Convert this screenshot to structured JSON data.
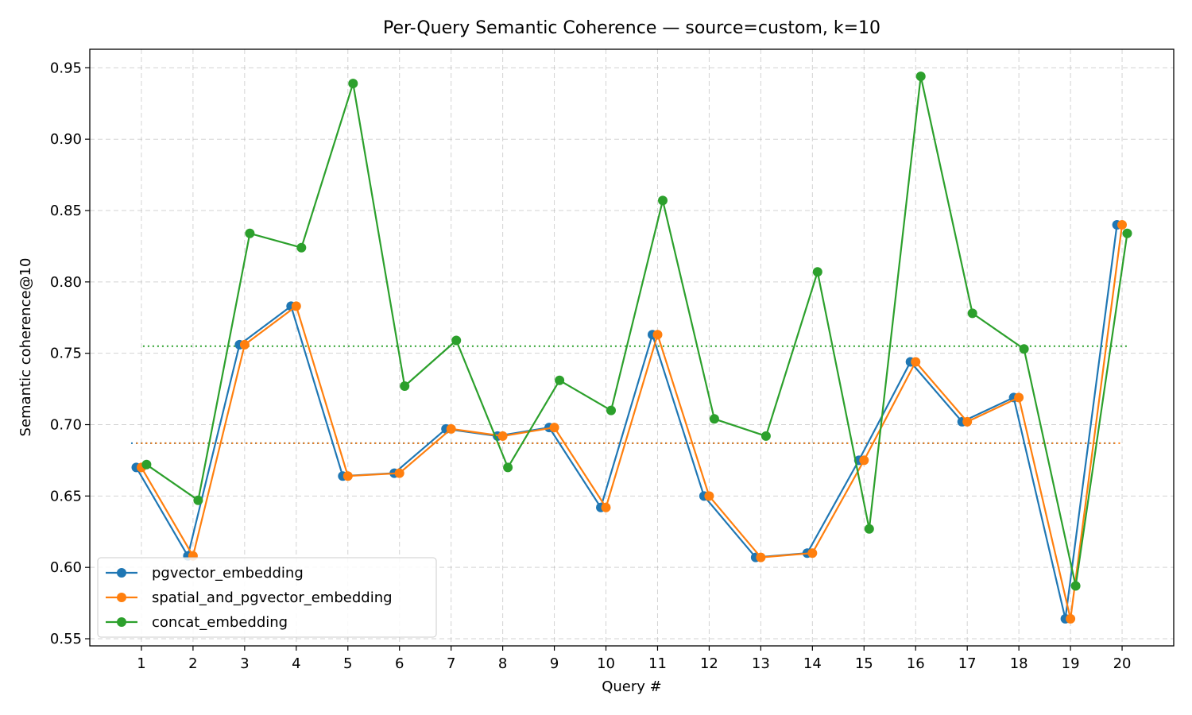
{
  "chart_data": {
    "type": "line",
    "title": "Per-Query Semantic Coherence — source=custom, k=10",
    "xlabel": "Query #",
    "ylabel": "Semantic coherence@10",
    "x": [
      1,
      2,
      3,
      4,
      5,
      6,
      7,
      8,
      9,
      10,
      11,
      12,
      13,
      14,
      15,
      16,
      17,
      18,
      19,
      20
    ],
    "xlim": [
      0,
      21
    ],
    "ylim": [
      0.545,
      0.963
    ],
    "yticks": [
      0.55,
      0.6,
      0.65,
      0.7,
      0.75,
      0.8,
      0.85,
      0.9,
      0.95
    ],
    "ytick_labels": [
      "0.55",
      "0.60",
      "0.65",
      "0.70",
      "0.75",
      "0.80",
      "0.85",
      "0.90",
      "0.95"
    ],
    "xtick_labels": [
      "1",
      "2",
      "3",
      "4",
      "5",
      "6",
      "7",
      "8",
      "9",
      "10",
      "11",
      "12",
      "13",
      "14",
      "15",
      "16",
      "17",
      "18",
      "19",
      "20"
    ],
    "grid": true,
    "legend_position": "lower-left",
    "series": [
      {
        "name": "pgvector_embedding",
        "color": "#1f77b4",
        "values": [
          0.67,
          0.608,
          0.756,
          0.783,
          0.664,
          0.666,
          0.697,
          0.692,
          0.698,
          0.642,
          0.763,
          0.65,
          0.607,
          0.61,
          0.675,
          0.744,
          0.702,
          0.719,
          0.564,
          0.84
        ],
        "mean": 0.687
      },
      {
        "name": "spatial_and_pgvector_embedding",
        "color": "#ff7f0e",
        "values": [
          0.67,
          0.608,
          0.756,
          0.783,
          0.664,
          0.666,
          0.697,
          0.692,
          0.698,
          0.642,
          0.763,
          0.65,
          0.607,
          0.61,
          0.675,
          0.744,
          0.702,
          0.719,
          0.564,
          0.84
        ],
        "mean": 0.687
      },
      {
        "name": "concat_embedding",
        "color": "#2ca02c",
        "values": [
          0.672,
          0.647,
          0.834,
          0.824,
          0.939,
          0.727,
          0.759,
          0.67,
          0.731,
          0.71,
          0.857,
          0.704,
          0.692,
          0.807,
          0.627,
          0.944,
          0.778,
          0.753,
          0.587,
          0.834
        ],
        "mean": 0.755
      }
    ]
  }
}
